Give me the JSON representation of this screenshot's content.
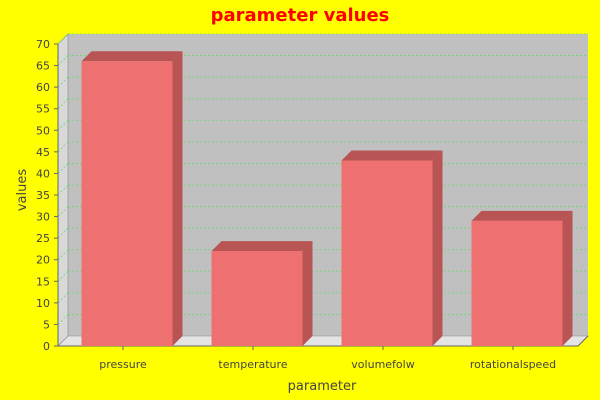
{
  "chart_data": {
    "type": "bar",
    "title": "parameter values",
    "xlabel": "parameter",
    "ylabel": "values",
    "categories": [
      "pressure",
      "temperature",
      "volumefolw",
      "rotationalspeed"
    ],
    "values": [
      66,
      22,
      43,
      29
    ],
    "ylim": [
      0,
      70
    ],
    "yticks": [
      0,
      5,
      10,
      15,
      20,
      25,
      30,
      35,
      40,
      45,
      50,
      55,
      60,
      65,
      70
    ],
    "grid": true,
    "colors": {
      "background": "#ffff00",
      "plot_back": "#c0c0c0",
      "plot_side": "#d8d8d8",
      "plot_floor": "#e4e4e4",
      "bar_front": "#ee7070",
      "bar_top": "#b85454",
      "bar_side": "#b85454",
      "grid": "#6ad86a",
      "title": "#ff0000"
    }
  }
}
